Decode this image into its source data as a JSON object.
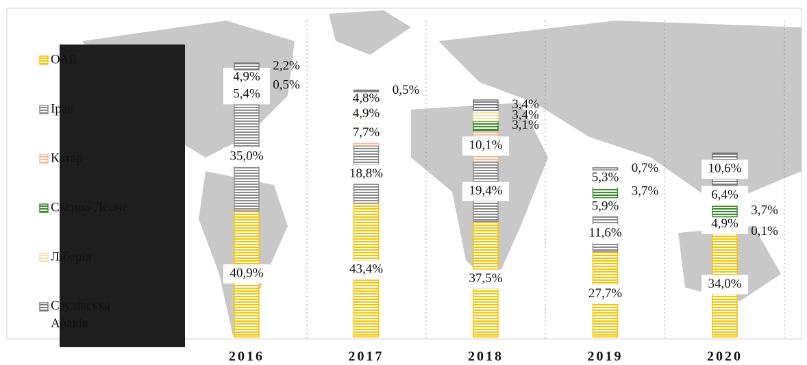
{
  "chart_data": {
    "type": "stacked_bar",
    "categories": [
      "2016",
      "2017",
      "2018",
      "2019",
      "2020"
    ],
    "series": [
      {
        "name": "ОАЕ",
        "color": "#f5c400",
        "values": [
          40.9,
          43.4,
          37.5,
          27.7,
          34.0
        ],
        "value_labels": [
          "40,9%",
          "43,4%",
          "37,5%",
          "27,7%",
          "34,0%"
        ]
      },
      {
        "name": "Ірак",
        "color": "#8c8c8c",
        "values": [
          35.0,
          18.8,
          19.4,
          11.6,
          0.1
        ],
        "value_labels": [
          "35,0%",
          "18,8%",
          "19,4%",
          "11,6%",
          "0,1%"
        ]
      },
      {
        "name": "Катар",
        "color": "#f4b99a",
        "values": [
          5.4,
          7.7,
          10.1,
          5.9,
          4.9
        ],
        "value_labels": [
          "5,4%",
          "7,7%",
          "10,1%",
          "5,9%",
          "4,9%"
        ]
      },
      {
        "name": "Сьєрра-Леоне",
        "color": "#3a8a2a",
        "values": [
          0.5,
          4.9,
          3.1,
          3.7,
          3.7
        ],
        "value_labels": [
          "0,5%",
          "4,9%",
          "3,1%",
          "3,7%",
          "3,7%"
        ]
      },
      {
        "name": "Ліберія",
        "color": "#efe4b0",
        "values": [
          4.9,
          4.8,
          3.4,
          5.3,
          6.4
        ],
        "value_labels": [
          "4,9%",
          "4,8%",
          "3,4%",
          "5,3%",
          "6,4%"
        ]
      },
      {
        "name": "Саудівська Аравія",
        "color": "#7a7a7a",
        "values": [
          2.2,
          0.5,
          3.4,
          0.7,
          10.6
        ],
        "value_labels": [
          "2,2%",
          "0,5%",
          "3,4%",
          "0,7%",
          "10,6%"
        ]
      }
    ],
    "legend": "left"
  }
}
